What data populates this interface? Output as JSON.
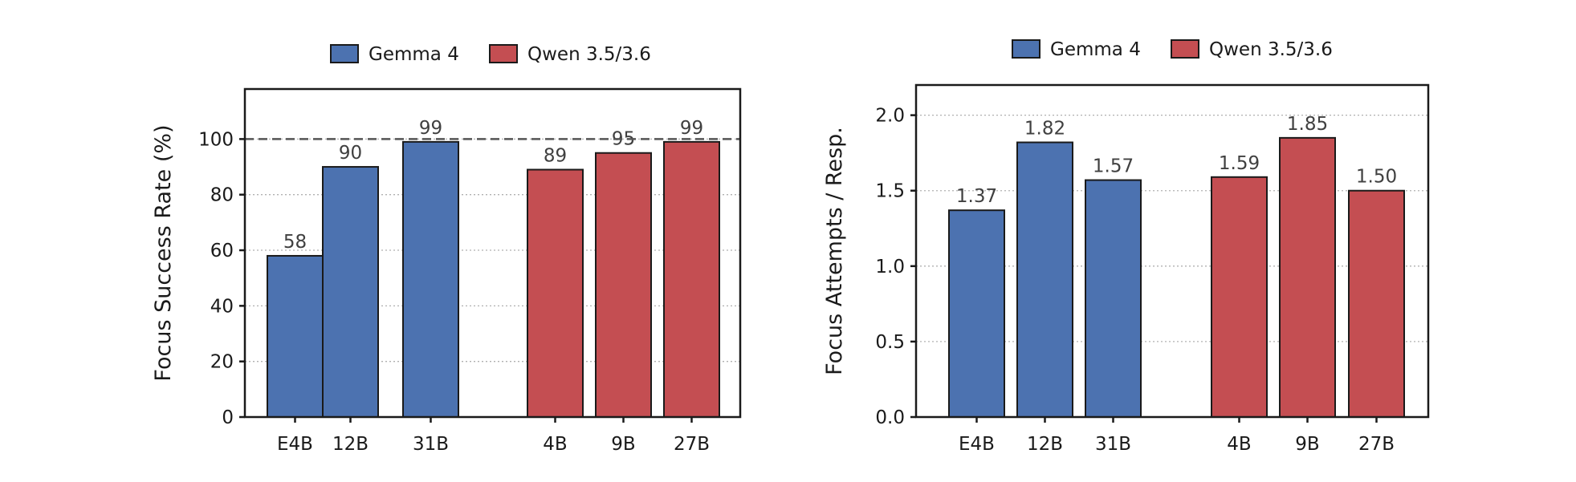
{
  "colors": {
    "gemma": "#4c72b0",
    "qwen": "#c44e52"
  },
  "chart_data": [
    {
      "type": "bar",
      "ylabel": "Focus Success Rate (%)",
      "ylim": [
        0,
        118
      ],
      "yticks": [
        0,
        20,
        40,
        60,
        80,
        100
      ],
      "ytick_labels": [
        "0",
        "20",
        "40",
        "60",
        "80",
        "100"
      ],
      "grid": "horizontal dotted",
      "reference_line": 100,
      "legend": {
        "placement": "top-center",
        "entries": [
          "Gemma 4",
          "Qwen 3.5/3.6"
        ]
      },
      "groups": [
        {
          "name": "Gemma 4",
          "categories": [
            "E4B",
            "12B",
            "31B"
          ],
          "values": [
            58,
            90,
            99
          ],
          "labels": [
            "58",
            "90",
            "99"
          ]
        },
        {
          "name": "Qwen 3.5/3.6",
          "categories": [
            "4B",
            "9B",
            "27B"
          ],
          "values": [
            89,
            95,
            99
          ],
          "labels": [
            "89",
            "95",
            "99"
          ]
        }
      ]
    },
    {
      "type": "bar",
      "ylabel": "Focus Attempts / Resp.",
      "ylim": [
        0,
        2.2
      ],
      "yticks": [
        0,
        0.5,
        1.0,
        1.5,
        2.0
      ],
      "ytick_labels": [
        "0.0",
        "0.5",
        "1.0",
        "1.5",
        "2.0"
      ],
      "grid": "horizontal dotted",
      "legend": {
        "placement": "top-center",
        "entries": [
          "Gemma 4",
          "Qwen 3.5/3.6"
        ]
      },
      "groups": [
        {
          "name": "Gemma 4",
          "categories": [
            "E4B",
            "12B",
            "31B"
          ],
          "values": [
            1.37,
            1.82,
            1.57
          ],
          "labels": [
            "1.37",
            "1.82",
            "1.57"
          ]
        },
        {
          "name": "Qwen 3.5/3.6",
          "categories": [
            "4B",
            "9B",
            "27B"
          ],
          "values": [
            1.59,
            1.85,
            1.5
          ],
          "labels": [
            "1.59",
            "1.85",
            "1.50"
          ]
        }
      ]
    }
  ]
}
